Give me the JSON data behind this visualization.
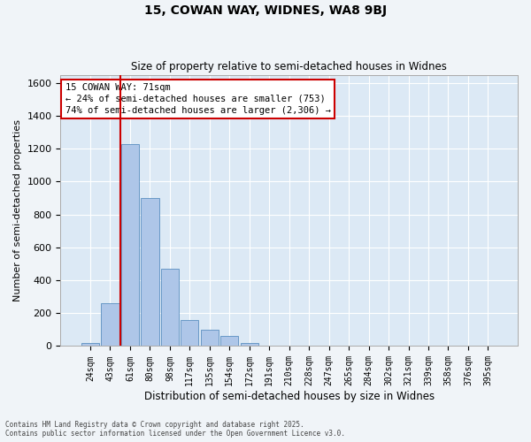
{
  "title1": "15, COWAN WAY, WIDNES, WA8 9BJ",
  "title2": "Size of property relative to semi-detached houses in Widnes",
  "xlabel": "Distribution of semi-detached houses by size in Widnes",
  "ylabel": "Number of semi-detached properties",
  "categories": [
    "24sqm",
    "43sqm",
    "61sqm",
    "80sqm",
    "98sqm",
    "117sqm",
    "135sqm",
    "154sqm",
    "172sqm",
    "191sqm",
    "210sqm",
    "228sqm",
    "247sqm",
    "265sqm",
    "284sqm",
    "302sqm",
    "321sqm",
    "339sqm",
    "358sqm",
    "376sqm",
    "395sqm"
  ],
  "values": [
    20,
    260,
    1230,
    900,
    470,
    160,
    100,
    60,
    20,
    5,
    0,
    0,
    0,
    0,
    0,
    0,
    0,
    0,
    0,
    0,
    0
  ],
  "bar_color": "#aec6e8",
  "bar_edge_color": "#5a8fc0",
  "property_sqm": 71,
  "pct_smaller": 24,
  "pct_larger": 74,
  "count_smaller": 753,
  "count_larger": 2306,
  "ylim": [
    0,
    1650
  ],
  "yticks": [
    0,
    200,
    400,
    600,
    800,
    1000,
    1200,
    1400,
    1600
  ],
  "line_color": "#cc0000",
  "annotation_box_edge": "#cc0000",
  "plot_bg": "#dce9f5",
  "fig_bg": "#f0f4f8",
  "footer1": "Contains HM Land Registry data © Crown copyright and database right 2025.",
  "footer2": "Contains public sector information licensed under the Open Government Licence v3.0."
}
